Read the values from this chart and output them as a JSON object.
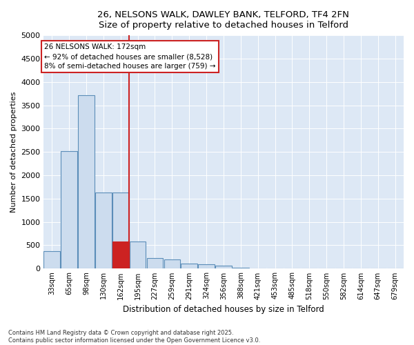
{
  "title_line1": "26, NELSONS WALK, DAWLEY BANK, TELFORD, TF4 2FN",
  "title_line2": "Size of property relative to detached houses in Telford",
  "xlabel": "Distribution of detached houses by size in Telford",
  "ylabel": "Number of detached properties",
  "categories": [
    "33sqm",
    "65sqm",
    "98sqm",
    "130sqm",
    "162sqm",
    "195sqm",
    "227sqm",
    "259sqm",
    "291sqm",
    "324sqm",
    "356sqm",
    "388sqm",
    "421sqm",
    "453sqm",
    "485sqm",
    "518sqm",
    "550sqm",
    "582sqm",
    "614sqm",
    "647sqm",
    "679sqm"
  ],
  "values": [
    370,
    2520,
    3720,
    1630,
    1630,
    580,
    220,
    200,
    110,
    90,
    60,
    10,
    0,
    0,
    0,
    0,
    0,
    0,
    0,
    0,
    0
  ],
  "bar_color": "#ccdcee",
  "bar_edge_color": "#5b8db8",
  "highlight_bar_index": 4,
  "highlight_bar_color": "#cc2222",
  "highlight_bar_edge_color": "#cc2222",
  "vline_color": "#cc2222",
  "vline_x": 4.5,
  "annotation_text": "26 NELSONS WALK: 172sqm\n← 92% of detached houses are smaller (8,528)\n8% of semi-detached houses are larger (759) →",
  "annotation_box_color": "#cc2222",
  "annotation_bg": "#ffffff",
  "ylim": [
    0,
    5000
  ],
  "yticks": [
    0,
    500,
    1000,
    1500,
    2000,
    2500,
    3000,
    3500,
    4000,
    4500,
    5000
  ],
  "footer_text": "Contains HM Land Registry data © Crown copyright and database right 2025.\nContains public sector information licensed under the Open Government Licence v3.0.",
  "bg_color": "#dde8f5",
  "fig_bg_color": "#ffffff",
  "grid_color": "#ffffff",
  "grid_lw": 0.7
}
